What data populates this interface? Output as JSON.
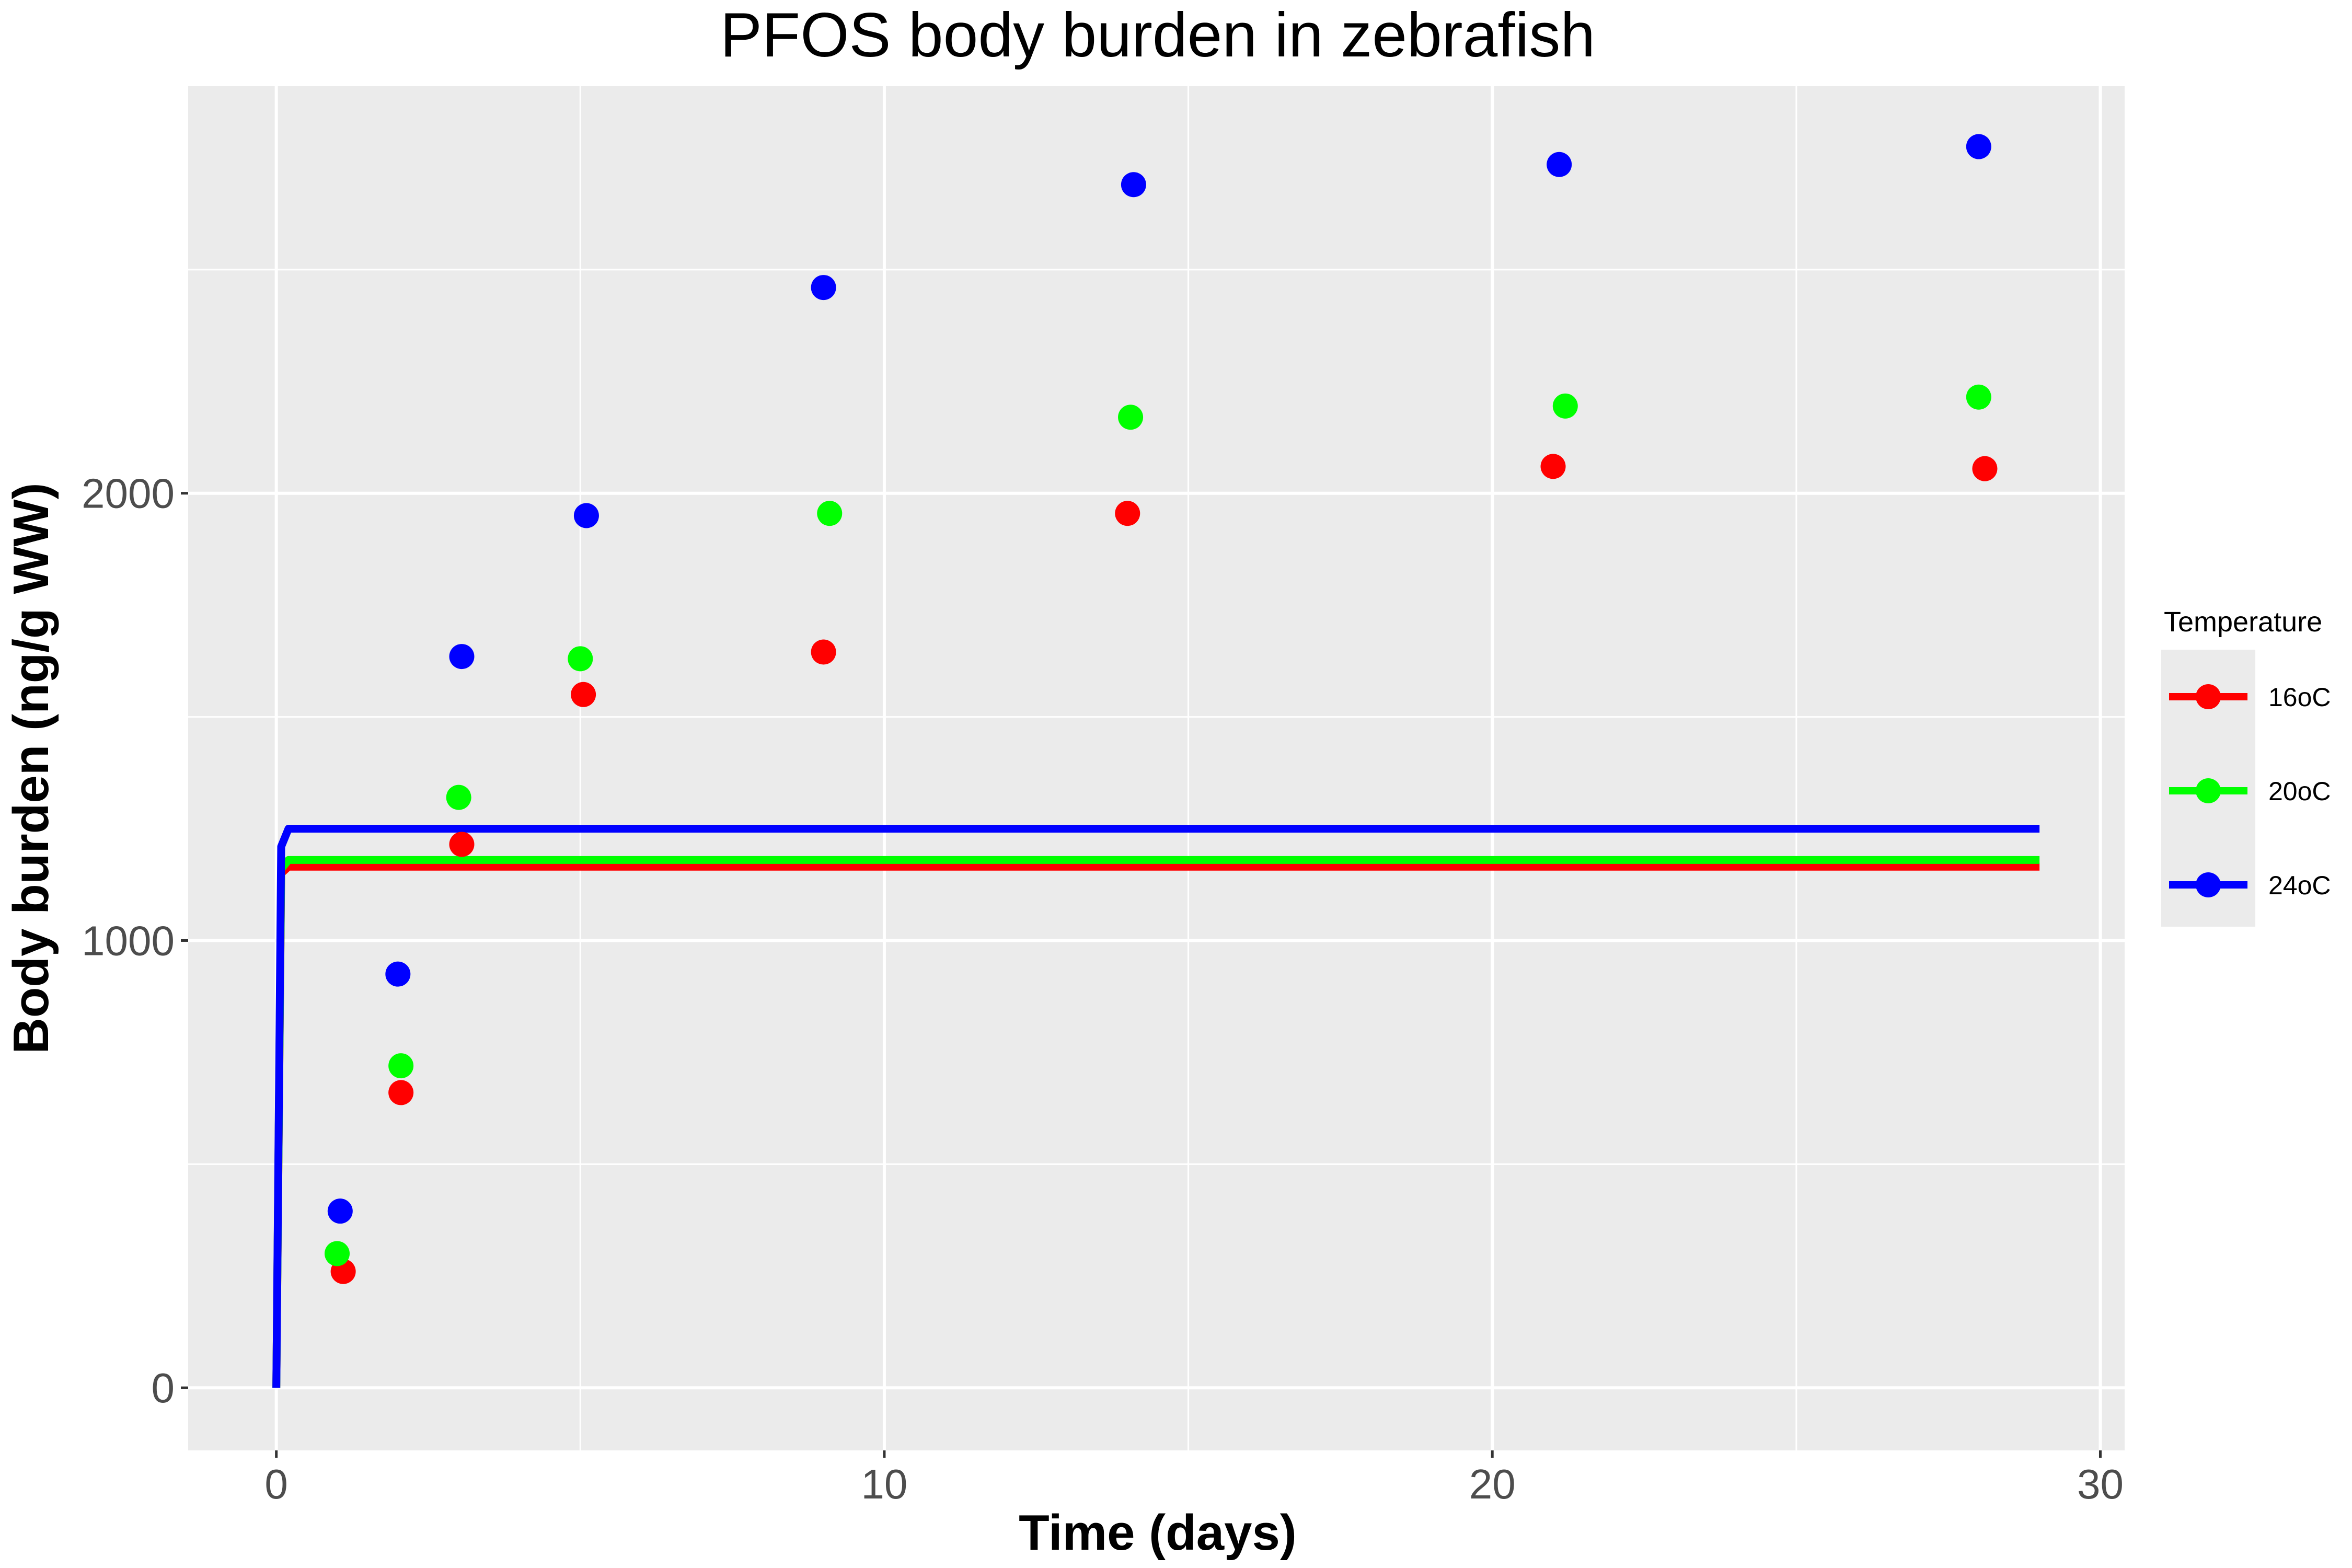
{
  "chart_data": {
    "type": "line",
    "title": "PFOS body burden in zebrafish",
    "xlabel": "Time (days)",
    "ylabel": "Body burden (ng/g WW)",
    "xlim": [
      -1.45,
      30.4
    ],
    "ylim": [
      -140,
      2910
    ],
    "x_ticks": [
      0,
      10,
      20,
      30
    ],
    "y_ticks": [
      0,
      1000,
      2000
    ],
    "x_minor": [
      5,
      15,
      25
    ],
    "y_minor": [
      500,
      1500,
      2500
    ],
    "grid": true,
    "legend": {
      "title": "Temperature",
      "position": "right"
    },
    "series": [
      {
        "name": "16oC",
        "color": "#ff0000",
        "points": {
          "x": [
            1.1,
            2.05,
            3.05,
            5.05,
            9.0,
            14.0,
            21.0,
            28.1
          ],
          "y": [
            260,
            660,
            1215,
            1550,
            1645,
            1955,
            2060,
            2055
          ]
        },
        "line": {
          "x": [
            0,
            0.08,
            0.2,
            29
          ],
          "y": [
            0,
            1150,
            1165,
            1165
          ]
        }
      },
      {
        "name": "20oC",
        "color": "#00ff00",
        "points": {
          "x": [
            1.0,
            2.05,
            3.0,
            5.0,
            9.1,
            14.05,
            21.2,
            28.0
          ],
          "y": [
            300,
            720,
            1320,
            1630,
            1955,
            2170,
            2195,
            2215
          ]
        },
        "line": {
          "x": [
            0,
            0.08,
            0.2,
            29
          ],
          "y": [
            0,
            1160,
            1180,
            1180
          ]
        }
      },
      {
        "name": "24oC",
        "color": "#0000ff",
        "points": {
          "x": [
            1.05,
            2.0,
            3.05,
            5.1,
            9.0,
            14.1,
            21.1,
            28.0
          ],
          "y": [
            395,
            925,
            1635,
            1950,
            2460,
            2690,
            2735,
            2775
          ]
        },
        "line": {
          "x": [
            0,
            0.08,
            0.2,
            29
          ],
          "y": [
            0,
            1210,
            1250,
            1250
          ]
        }
      }
    ]
  }
}
